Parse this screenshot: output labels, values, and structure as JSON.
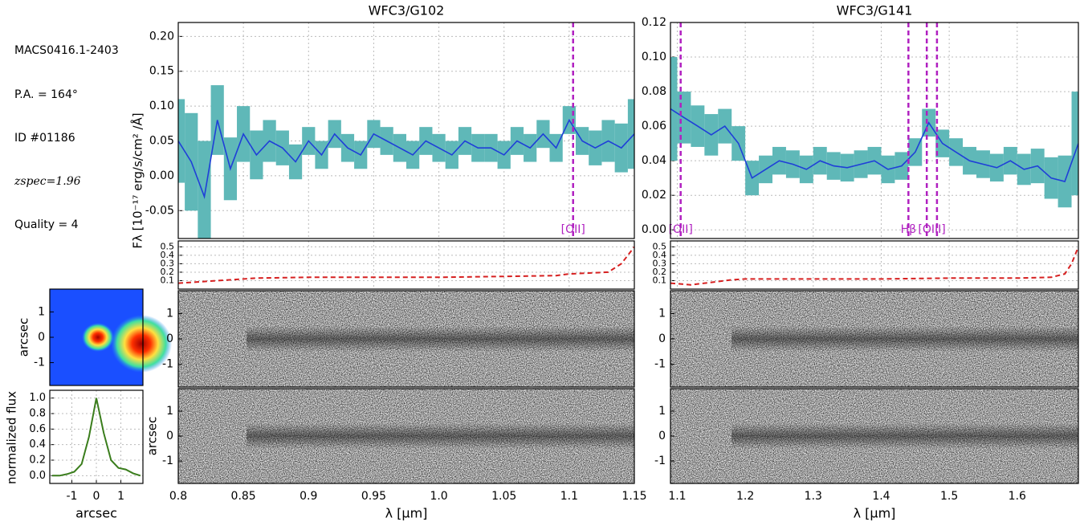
{
  "header": {
    "field": "MACS0416.1-2403",
    "pa": "P.A. = 164°",
    "id": "ID #01186",
    "z": "zspec=1.96",
    "quality": "Quality = 4"
  },
  "chart_data": [
    {
      "type": "line",
      "xlabel": "arcsec",
      "ylabel": "normalized flux",
      "image_ylabel": "arcsec",
      "x": [
        -1.8,
        -1.5,
        -1.2,
        -0.9,
        -0.6,
        -0.3,
        0.0,
        0.3,
        0.6,
        0.9,
        1.2,
        1.5,
        1.8
      ],
      "values": [
        0.0,
        0.0,
        0.02,
        0.05,
        0.15,
        0.5,
        1.0,
        0.55,
        0.2,
        0.1,
        0.08,
        0.03,
        0.0
      ],
      "color": "#3a7d1c",
      "xlim": [
        -1.9,
        1.9
      ],
      "xticks": [
        -1,
        0,
        1
      ],
      "ylim": [
        -0.1,
        1.1
      ],
      "yticks": [
        {
          "value": 0,
          "label": "0.0"
        },
        {
          "value": 0.2,
          "label": "0.2"
        },
        {
          "value": 0.4,
          "label": "0.4"
        },
        {
          "value": 0.6,
          "label": "0.6"
        },
        {
          "value": 0.8,
          "label": "0.8"
        },
        {
          "value": 1,
          "label": "1.0"
        }
      ],
      "image_ylim": [
        -1.9,
        1.9
      ],
      "image_yticks": [
        -1,
        0,
        1
      ],
      "grid": true
    },
    {
      "type": "spectrum",
      "title": "WFC3/G102",
      "xlabel": "λ [μm]",
      "ylabel": "Fλ [10⁻¹⁷ erg/s/cm² /Å]",
      "image_ylabel": "arcsec",
      "x": [
        0.8,
        0.81,
        0.82,
        0.83,
        0.84,
        0.85,
        0.86,
        0.87,
        0.88,
        0.89,
        0.9,
        0.91,
        0.92,
        0.93,
        0.94,
        0.95,
        0.96,
        0.97,
        0.98,
        0.99,
        1.0,
        1.01,
        1.02,
        1.03,
        1.04,
        1.05,
        1.06,
        1.07,
        1.08,
        1.09,
        1.1,
        1.11,
        1.12,
        1.13,
        1.14,
        1.15
      ],
      "values": [
        0.05,
        0.02,
        -0.03,
        0.08,
        0.01,
        0.06,
        0.03,
        0.05,
        0.04,
        0.02,
        0.05,
        0.03,
        0.06,
        0.04,
        0.03,
        0.06,
        0.05,
        0.04,
        0.03,
        0.05,
        0.04,
        0.03,
        0.05,
        0.04,
        0.04,
        0.03,
        0.05,
        0.04,
        0.06,
        0.04,
        0.08,
        0.05,
        0.04,
        0.05,
        0.04,
        0.06
      ],
      "errors": [
        0.06,
        0.07,
        0.08,
        0.05,
        0.045,
        0.04,
        0.035,
        0.03,
        0.025,
        0.025,
        0.02,
        0.02,
        0.02,
        0.02,
        0.02,
        0.02,
        0.02,
        0.02,
        0.02,
        0.02,
        0.02,
        0.02,
        0.02,
        0.02,
        0.02,
        0.02,
        0.02,
        0.02,
        0.02,
        0.02,
        0.02,
        0.02,
        0.025,
        0.03,
        0.035,
        0.05
      ],
      "color": "#1f3fd8",
      "error_color": "#5fb8b8",
      "xlim": [
        0.8,
        1.15
      ],
      "xticks": [
        {
          "value": 0.8,
          "label": "0.8"
        },
        0.85,
        {
          "value": 0.9,
          "label": "0.9"
        },
        0.95,
        {
          "value": 1,
          "label": "1.0"
        },
        1.05,
        {
          "value": 1.1,
          "label": "1.1"
        },
        1.15
      ],
      "ylim": [
        -0.09,
        0.22
      ],
      "yticks": [
        -0.05,
        {
          "value": 0,
          "label": "0.00"
        },
        0.05,
        {
          "value": 0.1,
          "label": "0.10"
        },
        0.15,
        {
          "value": 0.2,
          "label": "0.20"
        }
      ],
      "annotations": [
        {
          "x": [
            1.103
          ],
          "label": "[OII]"
        }
      ],
      "annotation_color": "#b020c0",
      "sensitivity": {
        "x": [
          0.8,
          0.83,
          0.86,
          0.9,
          0.95,
          1.0,
          1.05,
          1.09,
          1.1,
          1.13,
          1.14,
          1.15
        ],
        "values": [
          0.07,
          0.1,
          0.13,
          0.14,
          0.14,
          0.14,
          0.15,
          0.16,
          0.18,
          0.2,
          0.3,
          0.5
        ],
        "color": "#d62020",
        "ylim": [
          0,
          0.57
        ],
        "yticks": [
          0.1,
          0.2,
          0.3,
          0.4,
          0.5
        ]
      },
      "image_ylim": [
        -1.9,
        1.9
      ],
      "image_yticks": [
        -1,
        0,
        1
      ],
      "grid": true
    },
    {
      "type": "spectrum",
      "title": "WFC3/G141",
      "xlabel": "λ [μm]",
      "x": [
        1.09,
        1.11,
        1.13,
        1.15,
        1.17,
        1.19,
        1.21,
        1.23,
        1.25,
        1.27,
        1.29,
        1.31,
        1.33,
        1.35,
        1.37,
        1.39,
        1.41,
        1.43,
        1.45,
        1.47,
        1.49,
        1.51,
        1.53,
        1.55,
        1.57,
        1.59,
        1.61,
        1.63,
        1.65,
        1.67,
        1.69
      ],
      "values": [
        0.07,
        0.065,
        0.06,
        0.055,
        0.06,
        0.05,
        0.03,
        0.035,
        0.04,
        0.038,
        0.035,
        0.04,
        0.037,
        0.036,
        0.038,
        0.04,
        0.035,
        0.037,
        0.045,
        0.062,
        0.05,
        0.045,
        0.04,
        0.038,
        0.036,
        0.04,
        0.035,
        0.037,
        0.03,
        0.028,
        0.05
      ],
      "errors": [
        0.03,
        0.015,
        0.012,
        0.012,
        0.01,
        0.01,
        0.01,
        0.008,
        0.008,
        0.008,
        0.008,
        0.008,
        0.008,
        0.008,
        0.008,
        0.008,
        0.008,
        0.008,
        0.008,
        0.008,
        0.008,
        0.008,
        0.008,
        0.008,
        0.008,
        0.008,
        0.009,
        0.01,
        0.012,
        0.015,
        0.03
      ],
      "color": "#1f3fd8",
      "error_color": "#5fb8b8",
      "xlim": [
        1.09,
        1.69
      ],
      "xticks": [
        {
          "value": 1.1,
          "label": "1.1"
        },
        {
          "value": 1.2,
          "label": "1.2"
        },
        {
          "value": 1.3,
          "label": "1.3"
        },
        {
          "value": 1.4,
          "label": "1.4"
        },
        {
          "value": 1.5,
          "label": "1.5"
        },
        {
          "value": 1.6,
          "label": "1.6"
        }
      ],
      "ylim": [
        -0.005,
        0.12
      ],
      "yticks": [
        {
          "value": 0,
          "label": "0.00"
        },
        0.02,
        0.04,
        0.06,
        0.08,
        {
          "value": 0.1,
          "label": "0.10"
        },
        0.12
      ],
      "annotations": [
        {
          "x": [
            1.105
          ],
          "label": "[OII]"
        },
        {
          "x": [
            1.44
          ],
          "label": "Hβ"
        },
        {
          "x": [
            1.467,
            1.482
          ],
          "label": "[OIII]"
        }
      ],
      "annotation_color": "#b020c0",
      "sensitivity": {
        "x": [
          1.09,
          1.12,
          1.15,
          1.18,
          1.2,
          1.3,
          1.4,
          1.5,
          1.6,
          1.65,
          1.67,
          1.68,
          1.69
        ],
        "values": [
          0.07,
          0.05,
          0.08,
          0.11,
          0.12,
          0.12,
          0.12,
          0.13,
          0.13,
          0.14,
          0.18,
          0.3,
          0.5
        ],
        "color": "#d62020",
        "ylim": [
          0,
          0.57
        ],
        "yticks": [
          0.1,
          0.2,
          0.3,
          0.4,
          0.5
        ]
      },
      "image_ylim": [
        -1.9,
        1.9
      ],
      "image_yticks": [
        -1,
        0,
        1
      ],
      "grid": true
    }
  ]
}
